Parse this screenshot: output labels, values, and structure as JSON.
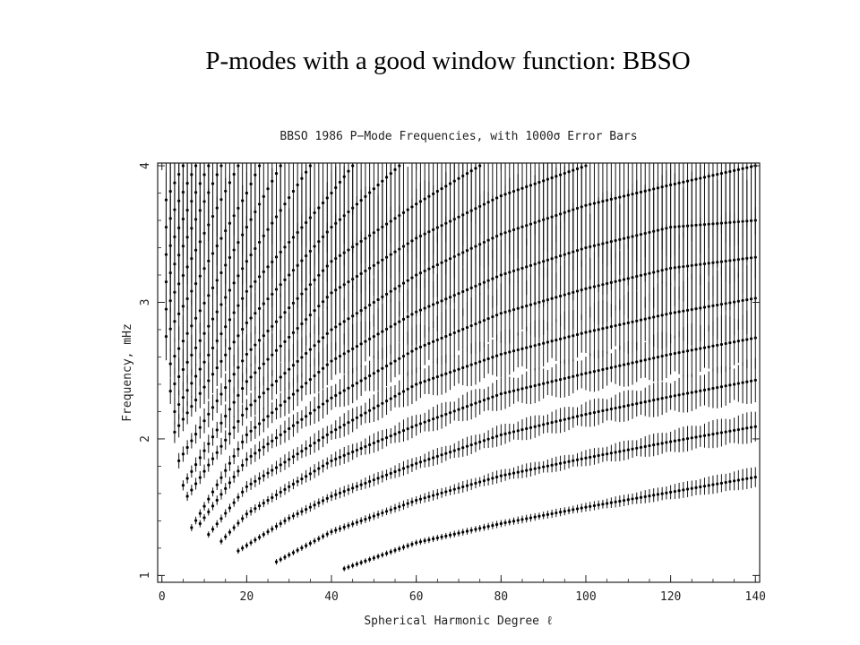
{
  "slide": {
    "title": "P-modes with a good window function: BBSO"
  },
  "chart_data": {
    "type": "scatter",
    "title": "BBSO 1986 P−Mode Frequencies, with 1000σ Error Bars",
    "xlabel": "Spherical Harmonic Degree ℓ",
    "ylabel": "Frequency, mHz",
    "xlim": [
      -1,
      141
    ],
    "ylim": [
      0.95,
      4.02
    ],
    "xticks": [
      0,
      20,
      40,
      60,
      80,
      100,
      120,
      140
    ],
    "yticks": [
      1,
      2,
      3,
      4
    ],
    "error_bars": "1000σ",
    "grid": false,
    "legend": "none",
    "series": [
      {
        "name": "",
        "start_l": 43,
        "values": [
          [
            43,
            1.05
          ],
          [
            60,
            1.24
          ],
          [
            80,
            1.38
          ],
          [
            100,
            1.5
          ],
          [
            120,
            1.61
          ],
          [
            140,
            1.72
          ]
        ]
      },
      {
        "name": "",
        "start_l": 27,
        "values": [
          [
            27,
            1.1
          ],
          [
            40,
            1.32
          ],
          [
            60,
            1.55
          ],
          [
            80,
            1.73
          ],
          [
            100,
            1.86
          ],
          [
            120,
            1.98
          ],
          [
            140,
            2.09
          ]
        ]
      },
      {
        "name": "",
        "start_l": 18,
        "values": [
          [
            18,
            1.18
          ],
          [
            30,
            1.42
          ],
          [
            40,
            1.58
          ],
          [
            60,
            1.82
          ],
          [
            80,
            2.03
          ],
          [
            100,
            2.18
          ],
          [
            120,
            2.31
          ],
          [
            140,
            2.43
          ]
        ]
      },
      {
        "name": "",
        "start_l": 14,
        "values": [
          [
            14,
            1.25
          ],
          [
            20,
            1.45
          ],
          [
            30,
            1.65
          ],
          [
            40,
            1.84
          ],
          [
            60,
            2.1
          ],
          [
            80,
            2.33
          ],
          [
            100,
            2.48
          ],
          [
            120,
            2.62
          ],
          [
            140,
            2.74
          ]
        ]
      },
      {
        "name": "",
        "start_l": 11,
        "values": [
          [
            11,
            1.3
          ],
          [
            20,
            1.65
          ],
          [
            40,
            2.05
          ],
          [
            60,
            2.4
          ],
          [
            80,
            2.62
          ],
          [
            100,
            2.78
          ],
          [
            120,
            2.92
          ],
          [
            140,
            3.03
          ]
        ]
      },
      {
        "name": "",
        "start_l": 9,
        "values": [
          [
            9,
            1.38
          ],
          [
            20,
            1.85
          ],
          [
            40,
            2.3
          ],
          [
            60,
            2.66
          ],
          [
            80,
            2.92
          ],
          [
            100,
            3.1
          ],
          [
            120,
            3.25
          ],
          [
            140,
            3.33
          ]
        ]
      },
      {
        "name": "",
        "start_l": 7,
        "values": [
          [
            7,
            1.35
          ],
          [
            20,
            2.03
          ],
          [
            40,
            2.57
          ],
          [
            60,
            2.93
          ],
          [
            80,
            3.2
          ],
          [
            100,
            3.4
          ],
          [
            120,
            3.55
          ],
          [
            140,
            3.6
          ]
        ]
      },
      {
        "name": "",
        "start_l": 6,
        "values": [
          [
            6,
            1.58
          ],
          [
            20,
            2.22
          ],
          [
            40,
            2.8
          ],
          [
            60,
            3.2
          ],
          [
            80,
            3.5
          ],
          [
            100,
            3.71
          ],
          [
            120,
            3.86
          ],
          [
            140,
            4.0
          ]
        ]
      },
      {
        "name": "",
        "start_l": 5,
        "values": [
          [
            5,
            1.66
          ],
          [
            20,
            2.42
          ],
          [
            40,
            3.07
          ],
          [
            60,
            3.47
          ],
          [
            80,
            3.78
          ],
          [
            100,
            4.0
          ]
        ]
      },
      {
        "name": "",
        "start_l": 4,
        "values": [
          [
            4,
            1.84
          ],
          [
            20,
            2.62
          ],
          [
            40,
            3.3
          ],
          [
            60,
            3.72
          ],
          [
            75,
            4.0
          ]
        ]
      },
      {
        "name": "",
        "start_l": 3,
        "values": [
          [
            3,
            2.05
          ],
          [
            20,
            2.85
          ],
          [
            40,
            3.55
          ],
          [
            56,
            4.0
          ]
        ]
      },
      {
        "name": "",
        "start_l": 3,
        "values": [
          [
            3,
            2.2
          ],
          [
            20,
            3.08
          ],
          [
            40,
            3.8
          ],
          [
            45,
            4.0
          ]
        ]
      },
      {
        "name": "",
        "start_l": 2,
        "values": [
          [
            2,
            2.35
          ],
          [
            20,
            3.3
          ],
          [
            35,
            4.0
          ]
        ]
      },
      {
        "name": "",
        "start_l": 2,
        "values": [
          [
            2,
            2.55
          ],
          [
            20,
            3.55
          ],
          [
            28,
            4.0
          ]
        ]
      },
      {
        "name": "",
        "start_l": 1,
        "values": [
          [
            1,
            2.75
          ],
          [
            20,
            3.8
          ],
          [
            23,
            4.0
          ]
        ]
      },
      {
        "name": "",
        "start_l": 1,
        "values": [
          [
            1,
            2.95
          ],
          [
            18,
            4.0
          ]
        ]
      },
      {
        "name": "",
        "start_l": 1,
        "values": [
          [
            1,
            3.15
          ],
          [
            14,
            4.0
          ]
        ]
      },
      {
        "name": "",
        "start_l": 1,
        "values": [
          [
            1,
            3.35
          ],
          [
            11,
            4.0
          ]
        ]
      },
      {
        "name": "",
        "start_l": 1,
        "values": [
          [
            1,
            3.55
          ],
          [
            8,
            4.0
          ]
        ]
      },
      {
        "name": "",
        "start_l": 1,
        "values": [
          [
            1,
            3.75
          ],
          [
            5,
            4.0
          ]
        ]
      }
    ]
  }
}
